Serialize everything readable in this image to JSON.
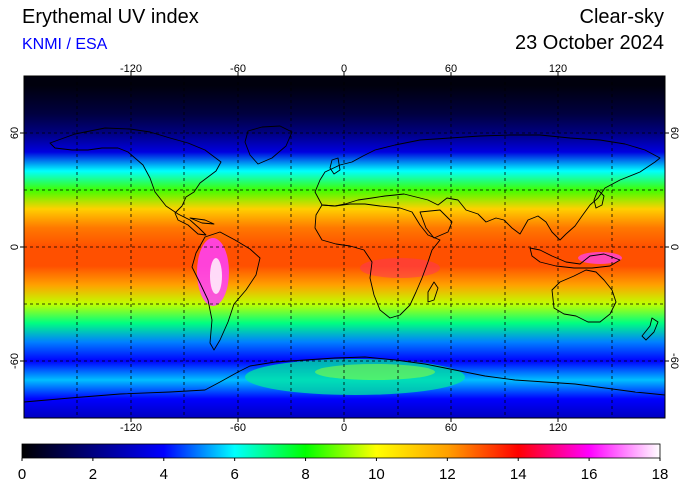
{
  "header": {
    "title": "Erythemal UV index",
    "source": "KNMI / ESA",
    "condition": "Clear-sky",
    "date": "23 October 2024"
  },
  "map": {
    "projection": "equirectangular",
    "lon_range": [
      -180,
      180
    ],
    "lat_range": [
      -90,
      90
    ],
    "lon_ticks": [
      -120,
      -60,
      0,
      60,
      120
    ],
    "lon_tick_labels": [
      "-120",
      "-60",
      "0",
      "60",
      "120"
    ],
    "lat_ticks": [
      60,
      0,
      -60
    ],
    "lat_tick_labels": [
      "60",
      "0",
      "-60"
    ],
    "grid": "dashed every 30 degrees",
    "field": "Erythemal UV index",
    "uv_profile_by_latitude": [
      {
        "lat": 85,
        "uv": 0.2
      },
      {
        "lat": 70,
        "uv": 1.0
      },
      {
        "lat": 60,
        "uv": 2.0
      },
      {
        "lat": 50,
        "uv": 3.5
      },
      {
        "lat": 40,
        "uv": 6.0
      },
      {
        "lat": 30,
        "uv": 8.5
      },
      {
        "lat": 20,
        "uv": 11.0
      },
      {
        "lat": 10,
        "uv": 12.5
      },
      {
        "lat": 0,
        "uv": 13.0
      },
      {
        "lat": -10,
        "uv": 13.0
      },
      {
        "lat": -20,
        "uv": 12.0
      },
      {
        "lat": -30,
        "uv": 9.5
      },
      {
        "lat": -40,
        "uv": 7.0
      },
      {
        "lat": -50,
        "uv": 5.0
      },
      {
        "lat": -60,
        "uv": 4.0
      },
      {
        "lat": -70,
        "uv": 5.5
      },
      {
        "lat": -80,
        "uv": 4.0
      },
      {
        "lat": -90,
        "uv": 3.0
      }
    ]
  },
  "colorbar": {
    "min": 0,
    "max": 18,
    "tick_labels": [
      "0",
      "2",
      "4",
      "6",
      "8",
      "10",
      "12",
      "14",
      "16",
      "18"
    ],
    "colors": [
      "#000000",
      "#000080",
      "#0000ff",
      "#00ffff",
      "#00ff00",
      "#ffff00",
      "#ffa000",
      "#ff0000",
      "#ff00ff",
      "#ffffff"
    ]
  },
  "colors": {
    "source_text": "#0000ff",
    "grid": "#000000",
    "coastline": "#000000"
  }
}
